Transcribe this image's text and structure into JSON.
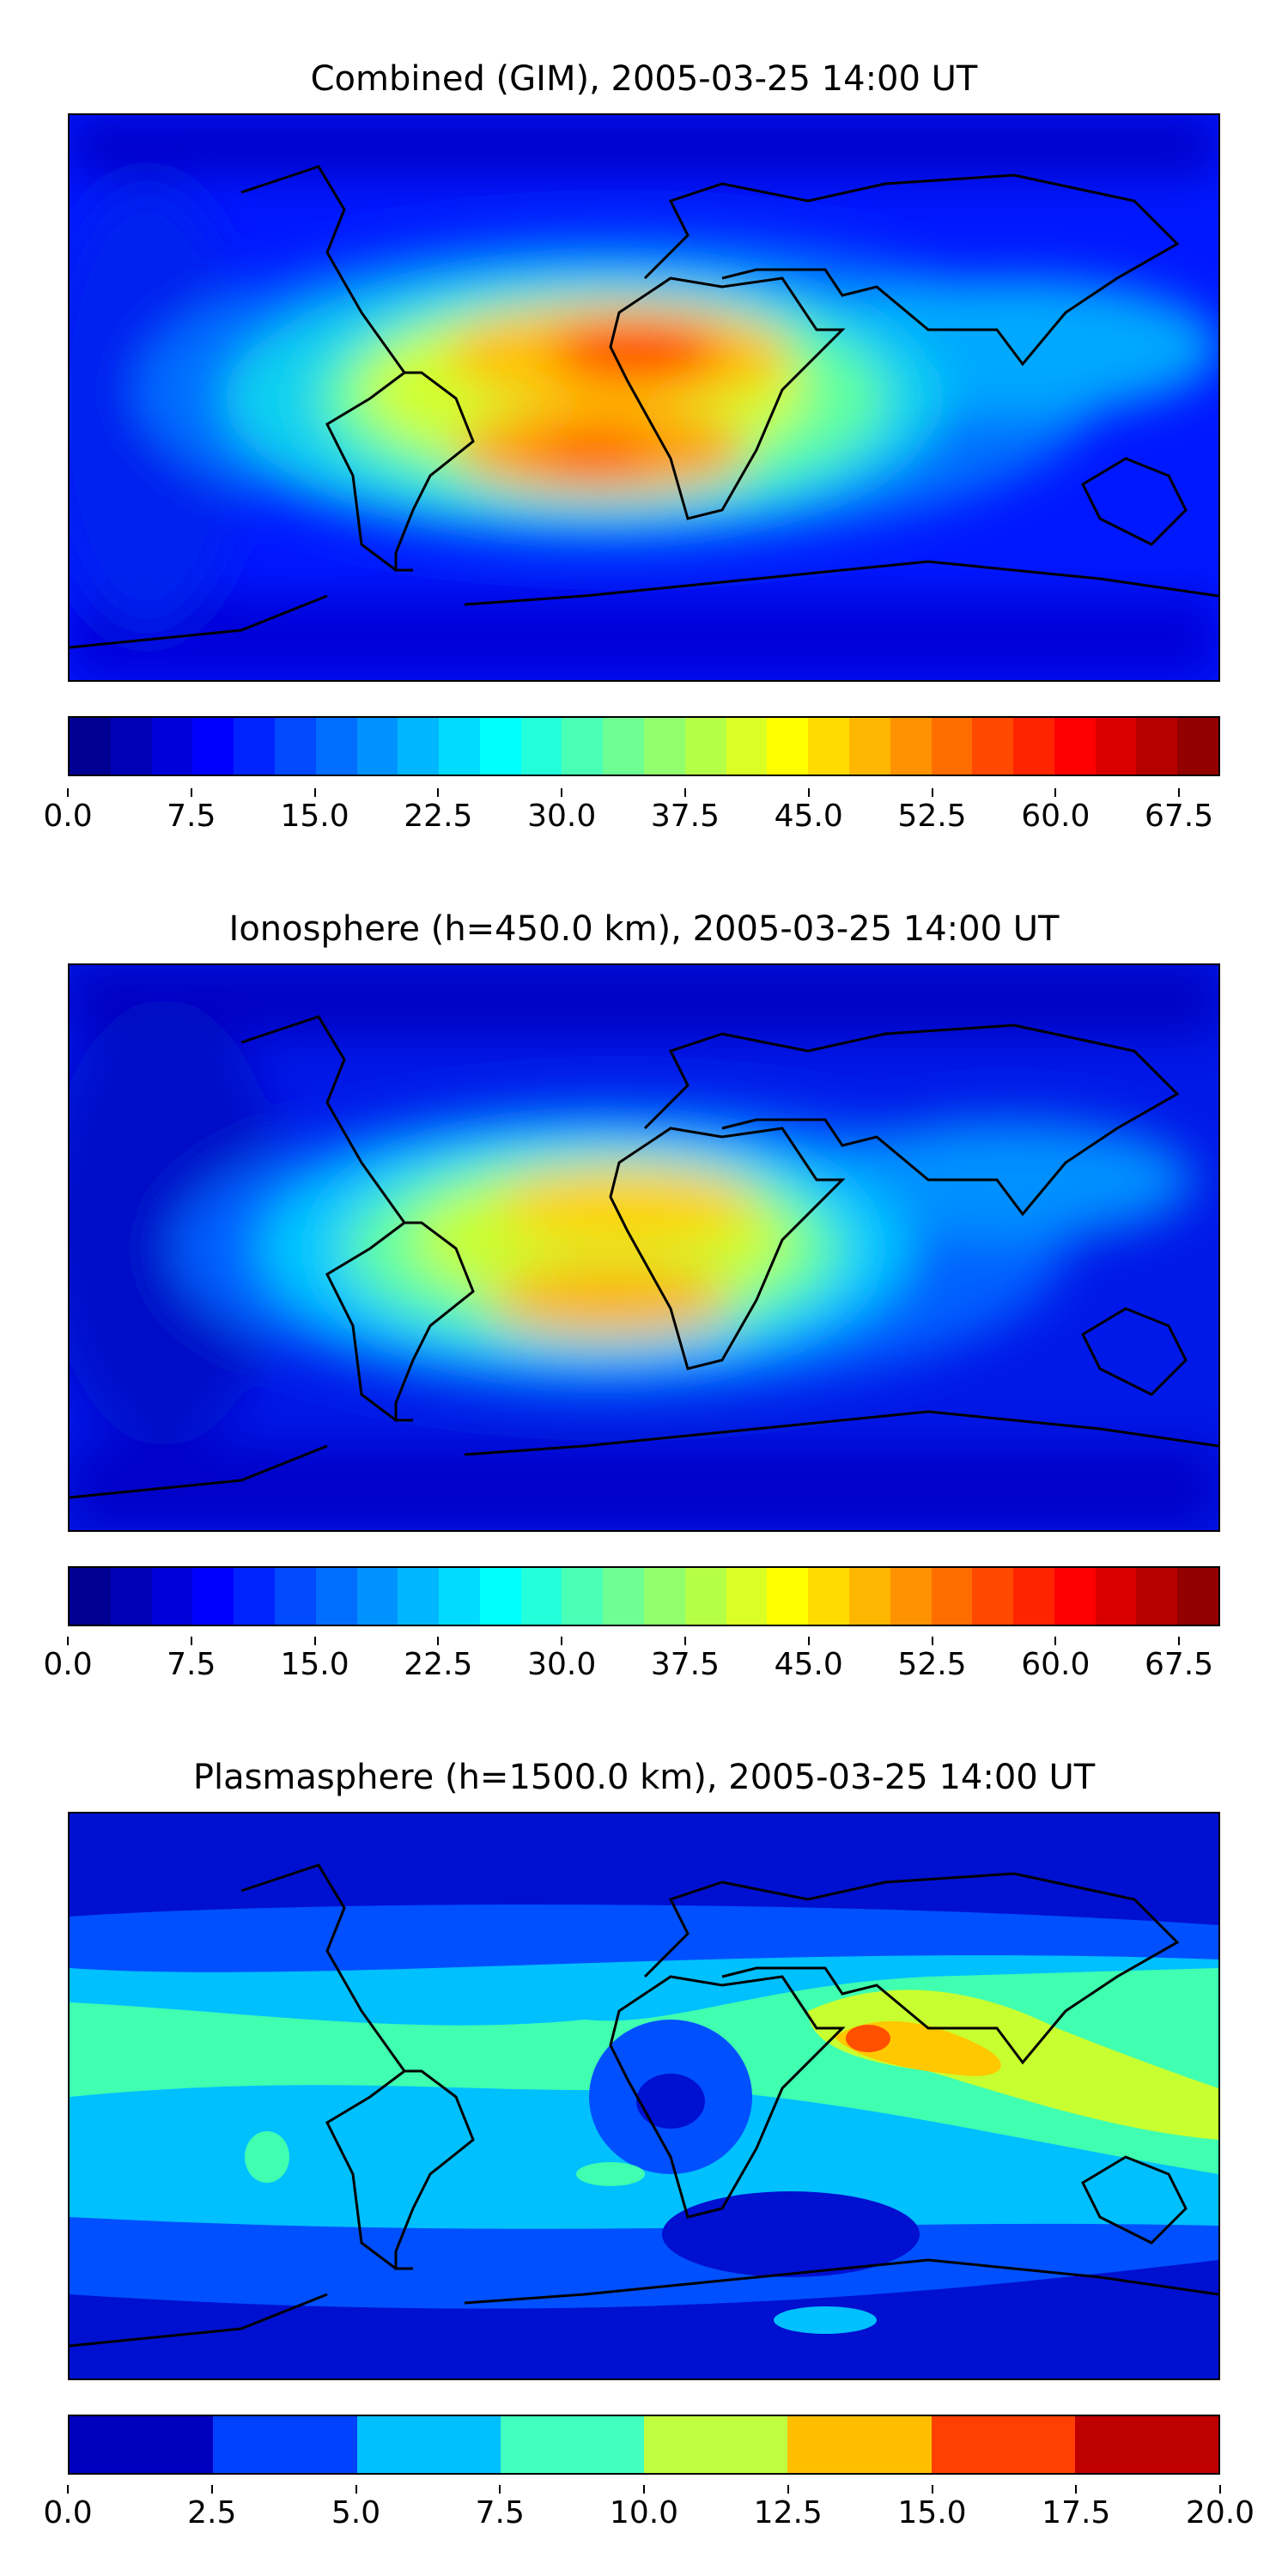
{
  "panels": [
    {
      "id": "combined",
      "title": "Combined (GIM), 2005-03-25 14:00 UT",
      "colorbar": {
        "vmin": 0.0,
        "vmax": 70.0,
        "levels": 28,
        "tick_labels": [
          "0.0",
          "7.5",
          "15.0",
          "22.5",
          "30.0",
          "37.5",
          "45.0",
          "52.5",
          "60.0",
          "67.5"
        ],
        "tick_values": [
          0.0,
          7.5,
          15.0,
          22.5,
          30.0,
          37.5,
          45.0,
          52.5,
          60.0,
          67.5
        ]
      }
    },
    {
      "id": "ionosphere",
      "title": "Ionosphere  (h=450.0 km), 2005-03-25 14:00 UT",
      "colorbar": {
        "vmin": 0.0,
        "vmax": 70.0,
        "levels": 28,
        "tick_labels": [
          "0.0",
          "7.5",
          "15.0",
          "22.5",
          "30.0",
          "37.5",
          "45.0",
          "52.5",
          "60.0",
          "67.5"
        ],
        "tick_values": [
          0.0,
          7.5,
          15.0,
          22.5,
          30.0,
          37.5,
          45.0,
          52.5,
          60.0,
          67.5
        ]
      }
    },
    {
      "id": "plasmasphere",
      "title": "Plasmasphere (h=1500.0 km), 2005-03-25 14:00 UT",
      "colorbar": {
        "vmin": 0.0,
        "vmax": 20.0,
        "levels": 8,
        "tick_labels": [
          "0.0",
          "2.5",
          "5.0",
          "7.5",
          "10.0",
          "12.5",
          "15.0",
          "17.5",
          "20.0"
        ],
        "tick_values": [
          0.0,
          2.5,
          5.0,
          7.5,
          10.0,
          12.5,
          15.0,
          17.5,
          20.0
        ]
      }
    }
  ],
  "chart_data": [
    {
      "type": "heatmap",
      "title": "Combined (GIM), 2005-03-25 14:00 UT",
      "colormap": "jet",
      "value_range": [
        0.0,
        70.0
      ],
      "features": [
        {
          "name": "peak West Africa",
          "lon": -5,
          "lat": 12,
          "value": 62
        },
        {
          "name": "peak South Atlantic",
          "lon": -5,
          "lat": -12,
          "value": 57
        },
        {
          "name": "shoulder East Africa",
          "lon": 35,
          "lat": 5,
          "value": 45
        },
        {
          "name": "shoulder South America",
          "lon": -55,
          "lat": -5,
          "value": 40
        },
        {
          "name": "belt SE Asia",
          "lon": 110,
          "lat": 10,
          "value": 30
        }
      ]
    },
    {
      "type": "heatmap",
      "title": "Ionosphere  (h=450.0 km), 2005-03-25 14:00 UT",
      "colormap": "jet",
      "value_range": [
        0.0,
        70.0
      ],
      "features": [
        {
          "name": "peak West Africa",
          "lon": 0,
          "lat": 12,
          "value": 52
        },
        {
          "name": "peak South Atlantic",
          "lon": -5,
          "lat": -10,
          "value": 50
        },
        {
          "name": "shoulder South America",
          "lon": -55,
          "lat": -8,
          "value": 37
        },
        {
          "name": "belt SE Asia",
          "lon": 110,
          "lat": 10,
          "value": 25
        }
      ]
    },
    {
      "type": "heatmap",
      "title": "Plasmasphere (h=1500.0 km), 2005-03-25 14:00 UT",
      "colormap": "jet",
      "value_range": [
        0.0,
        20.0
      ],
      "features": [
        {
          "name": "peak Arabian Sea",
          "lon": 70,
          "lat": 15,
          "value": 16
        },
        {
          "name": "high India-SE Asia",
          "lon": 100,
          "lat": 12,
          "value": 14
        },
        {
          "name": "minimum Central Africa",
          "lon": 5,
          "lat": 5,
          "value": 3
        },
        {
          "name": "belt low latitudes",
          "lon": -60,
          "lat": -5,
          "value": 8
        }
      ]
    }
  ]
}
